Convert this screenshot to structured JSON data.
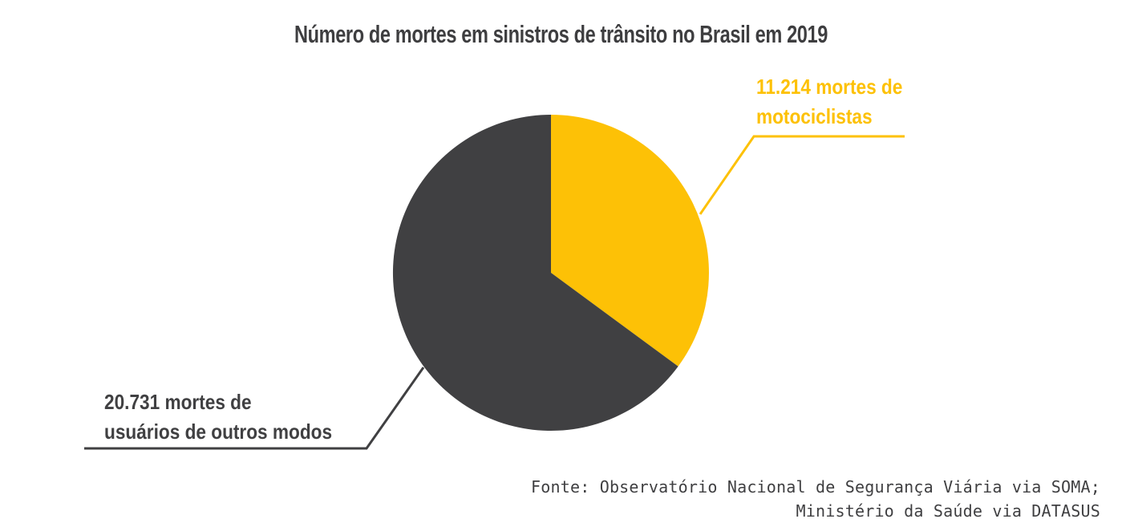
{
  "chart_data": {
    "type": "pie",
    "title": "Número de mortes em sinistros de trânsito no Brasil em 2019",
    "start_angle_deg": 0,
    "direction": "clockwise",
    "slices": [
      {
        "name": "motorcyclists",
        "label": "11.214 mortes de motociclistas",
        "value": 11214,
        "color": "#FDC106"
      },
      {
        "name": "other_modes",
        "label": "20.731 mortes de usuários de outros modos",
        "value": 20731,
        "color": "#404042"
      }
    ],
    "total": 31945,
    "legend_position": "callout-labels",
    "grid": false
  },
  "annotations": {
    "motorcyclists": {
      "line1": "11.214 mortes de",
      "line2": "motociclistas"
    },
    "other_modes": {
      "line1": "20.731 mortes de",
      "line2": "usuários de outros modos"
    }
  },
  "source": {
    "line1": "Fonte: Observatório Nacional de Segurança Viária via SOMA;",
    "line2": "Ministério da Saúde via DATASUS"
  },
  "colors": {
    "title": "#3E3E40",
    "source_text": "#3F3F41",
    "background": "#FFFFFF"
  }
}
